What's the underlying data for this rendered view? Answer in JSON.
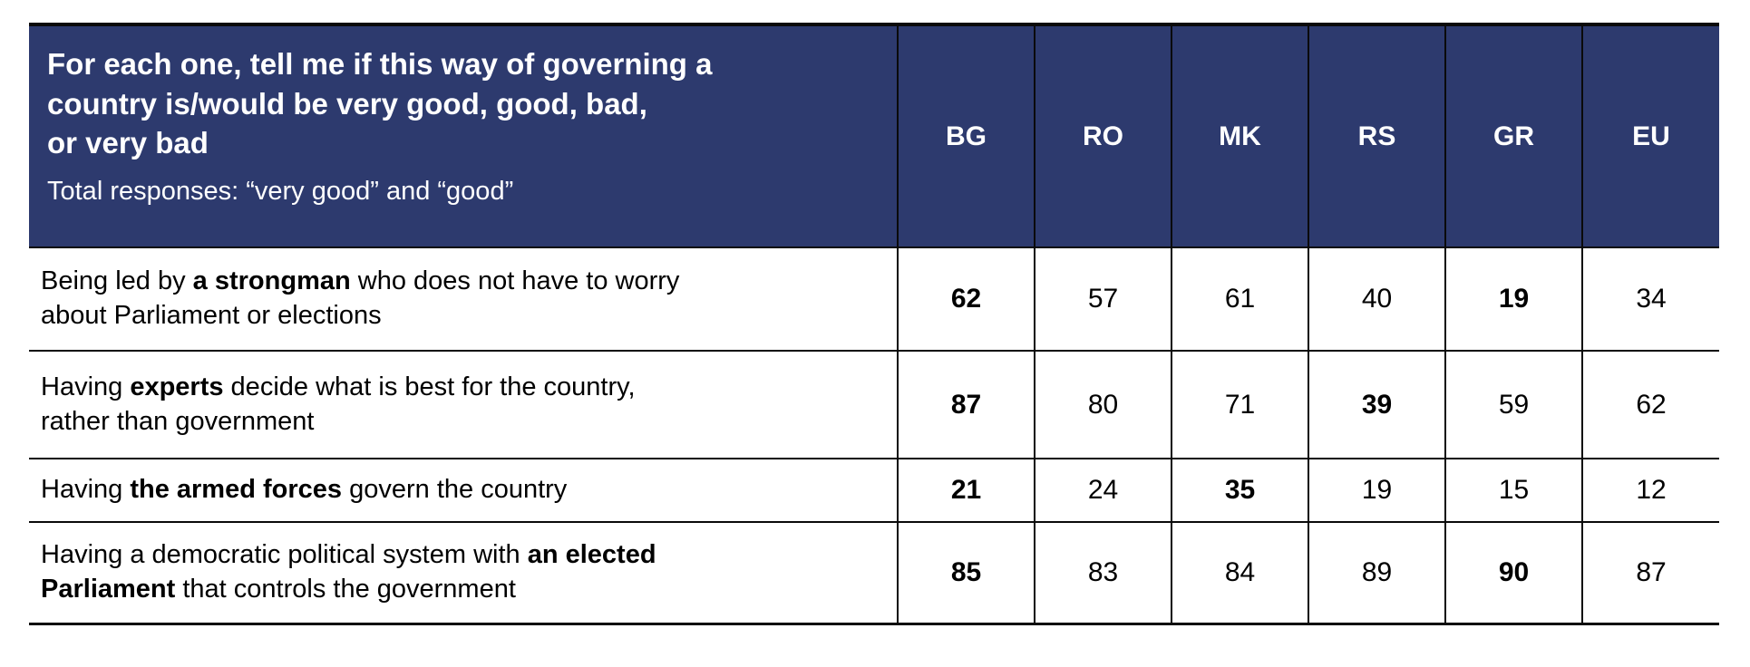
{
  "colors": {
    "header_bg": "#2d3a6e",
    "header_text": "#ffffff",
    "body_text": "#000000",
    "border": "#0a0a0a",
    "page_bg": "#ffffff"
  },
  "table": {
    "header": {
      "question": "For each one, tell me if this way of governing a\ncountry is/would be very good, good, bad,\nor very bad",
      "subtitle": "Total responses: “very good” and “good”"
    },
    "columns": [
      "BG",
      "RO",
      "MK",
      "RS",
      "GR",
      "EU"
    ],
    "rows": [
      {
        "label_parts": [
          {
            "text": "Being led by ",
            "bold": false
          },
          {
            "text": "a strongman",
            "bold": true
          },
          {
            "text": " who does not have to worry\nabout Parliament or elections",
            "bold": false
          }
        ],
        "values": [
          {
            "text": "62",
            "bold": true
          },
          {
            "text": "57",
            "bold": false
          },
          {
            "text": "61",
            "bold": false
          },
          {
            "text": "40",
            "bold": false
          },
          {
            "text": "19",
            "bold": true
          },
          {
            "text": "34",
            "bold": false
          }
        ]
      },
      {
        "label_parts": [
          {
            "text": "Having ",
            "bold": false
          },
          {
            "text": "experts",
            "bold": true
          },
          {
            "text": " decide what is best for the country,\nrather than government",
            "bold": false
          }
        ],
        "values": [
          {
            "text": "87",
            "bold": true
          },
          {
            "text": "80",
            "bold": false
          },
          {
            "text": "71",
            "bold": false
          },
          {
            "text": "39",
            "bold": true
          },
          {
            "text": "59",
            "bold": false
          },
          {
            "text": "62",
            "bold": false
          }
        ]
      },
      {
        "label_parts": [
          {
            "text": "Having ",
            "bold": false
          },
          {
            "text": "the armed forces",
            "bold": true
          },
          {
            "text": " govern the country",
            "bold": false
          }
        ],
        "values": [
          {
            "text": "21",
            "bold": true
          },
          {
            "text": "24",
            "bold": false
          },
          {
            "text": "35",
            "bold": true
          },
          {
            "text": "19",
            "bold": false
          },
          {
            "text": "15",
            "bold": false
          },
          {
            "text": "12",
            "bold": false
          }
        ]
      },
      {
        "label_parts": [
          {
            "text": "Having a democratic political system with ",
            "bold": false
          },
          {
            "text": "an elected\nParliament",
            "bold": true
          },
          {
            "text": " that controls the government",
            "bold": false
          }
        ],
        "values": [
          {
            "text": "85",
            "bold": true
          },
          {
            "text": "83",
            "bold": false
          },
          {
            "text": "84",
            "bold": false
          },
          {
            "text": "89",
            "bold": false
          },
          {
            "text": "90",
            "bold": true
          },
          {
            "text": "87",
            "bold": false
          }
        ]
      }
    ]
  },
  "chart_data": {
    "type": "table",
    "title": "For each one, tell me if this way of governing a country is/would be very good, good, bad, or very bad",
    "subtitle": "Total responses: “very good” and “good”",
    "columns": [
      "BG",
      "RO",
      "MK",
      "RS",
      "GR",
      "EU"
    ],
    "rows": [
      {
        "label": "Being led by a strongman who does not have to worry about Parliament or elections",
        "values": [
          62,
          57,
          61,
          40,
          19,
          34
        ]
      },
      {
        "label": "Having experts decide what is best for the country, rather than government",
        "values": [
          87,
          80,
          71,
          39,
          59,
          62
        ]
      },
      {
        "label": "Having the armed forces govern the country",
        "values": [
          21,
          24,
          35,
          19,
          15,
          12
        ]
      },
      {
        "label": "Having a democratic political system with an elected Parliament that controls the government",
        "values": [
          85,
          83,
          84,
          89,
          90,
          87
        ]
      }
    ]
  }
}
